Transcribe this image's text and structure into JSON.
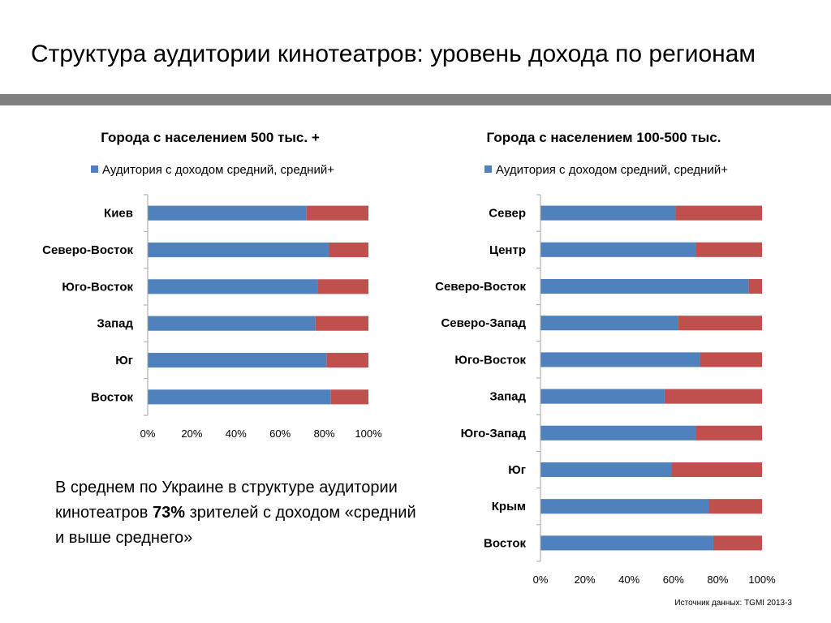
{
  "slide": {
    "title": "Структура аудитории кинотеатров: уровень дохода по регионам",
    "summary": {
      "before": "В среднем по Украине в структуре аудитории кинотеатров ",
      "highlight": "73%",
      "after": " зрителей с доходом «средний и выше среднего»"
    },
    "source": "Источник данных: TGMI 2013-3"
  },
  "colors": {
    "rule": "#7f7f7f",
    "series_main": "#4f81bd",
    "series_rest": "#c0504d",
    "axis": "#a6a6a6"
  },
  "chart_data": [
    {
      "type": "bar",
      "orientation": "horizontal",
      "stacked": "100%",
      "title": "Города с населением 500 тыс. +",
      "legend": {
        "label": "Аудитория с доходом средний, средний+",
        "placement": "top"
      },
      "categories": [
        "Киев",
        "Северо-Восток",
        "Юго-Восток",
        "Запад",
        "Юг",
        "Восток"
      ],
      "series": [
        {
          "name": "Аудитория с доходом средний, средний+",
          "values": [
            72,
            82,
            77,
            76,
            81,
            83
          ]
        },
        {
          "values": [
            28,
            18,
            23,
            24,
            19,
            17
          ]
        }
      ],
      "xlim": [
        0,
        100
      ],
      "xticks": [
        "0%",
        "20%",
        "40%",
        "60%",
        "80%",
        "100%"
      ],
      "grid": false
    },
    {
      "type": "bar",
      "orientation": "horizontal",
      "stacked": "100%",
      "title": "Города с населением 100-500 тыс.",
      "legend": {
        "label": "Аудитория с доходом средний, средний+",
        "placement": "top"
      },
      "categories": [
        "Север",
        "Центр",
        "Северо-Восток",
        "Северо-Запад",
        "Юго-Восток",
        "Запад",
        "Юго-Запад",
        "Юг",
        "Крым",
        "Восток"
      ],
      "series": [
        {
          "name": "Аудитория с доходом средний, средний+",
          "values": [
            61,
            70,
            94,
            62,
            72,
            56,
            70,
            59,
            76,
            78
          ]
        },
        {
          "values": [
            39,
            30,
            6,
            38,
            28,
            44,
            30,
            41,
            24,
            22
          ]
        }
      ],
      "xlim": [
        0,
        100
      ],
      "xticks": [
        "0%",
        "20%",
        "40%",
        "60%",
        "80%",
        "100%"
      ],
      "grid": false
    }
  ]
}
